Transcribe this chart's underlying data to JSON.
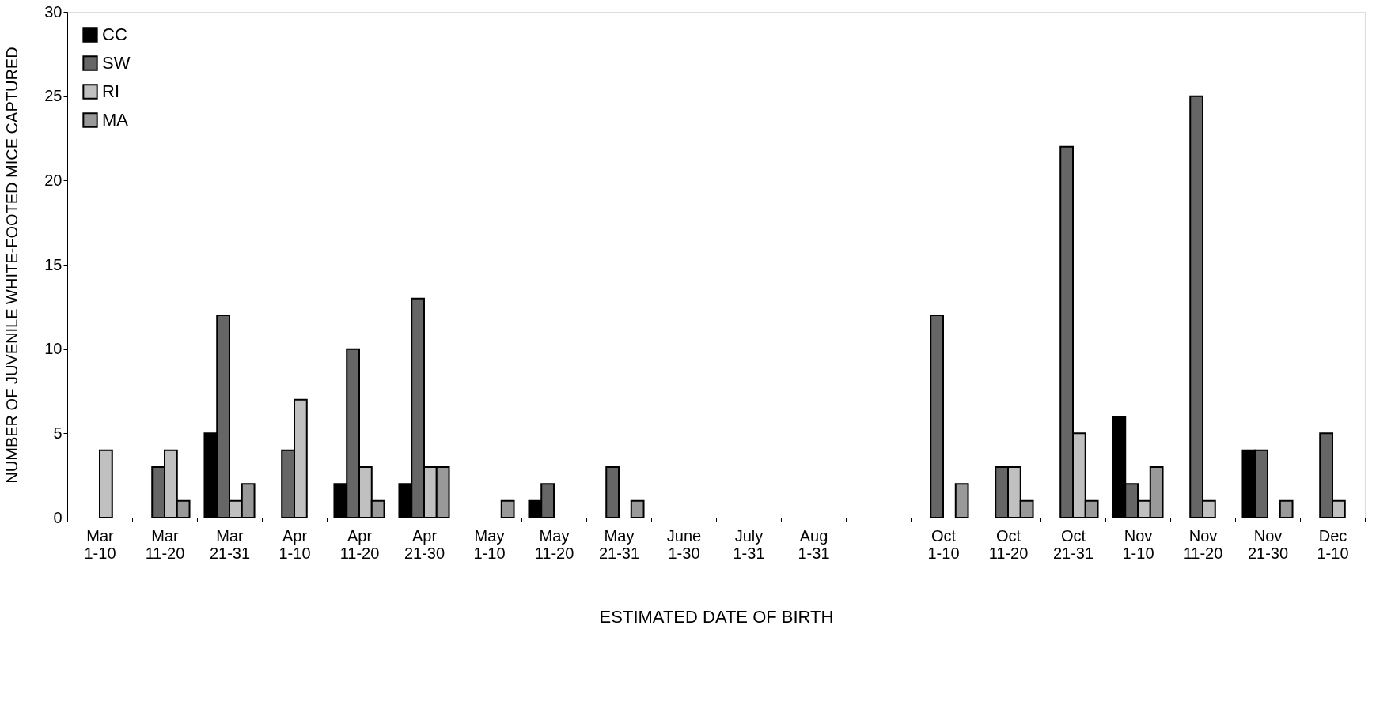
{
  "chart_data": {
    "type": "bar",
    "xlabel": "ESTIMATED DATE OF BIRTH",
    "ylabel": "NUMBER OF JUVENILE WHITE-FOOTED MICE CAPTURED",
    "categories": [
      "Mar 1-10",
      "Mar 11-20",
      "Mar 21-31",
      "Apr 1-10",
      "Apr 11-20",
      "Apr 21-30",
      "May 1-10",
      "May 11-20",
      "May 21-31",
      "June 1-30",
      "July 1-31",
      "Aug 1-31",
      null,
      "Oct 1-10",
      "Oct 11-20",
      "Oct 21-31",
      "Nov 1-10",
      "Nov 11-20",
      "Nov 21-30",
      "Dec 1-10"
    ],
    "series": [
      {
        "name": "CC",
        "color": "#000000",
        "values": [
          null,
          null,
          5,
          null,
          2,
          2,
          null,
          1,
          null,
          null,
          null,
          null,
          null,
          null,
          null,
          null,
          6,
          null,
          4,
          null
        ]
      },
      {
        "name": "SW",
        "color": "#666666",
        "values": [
          null,
          3,
          12,
          4,
          10,
          13,
          null,
          2,
          3,
          null,
          null,
          null,
          null,
          12,
          3,
          22,
          2,
          25,
          4,
          5
        ]
      },
      {
        "name": "RI",
        "color": "#c0c0c0",
        "values": [
          4,
          4,
          1,
          7,
          3,
          3,
          null,
          null,
          null,
          null,
          null,
          null,
          null,
          null,
          3,
          5,
          1,
          1,
          null,
          1
        ]
      },
      {
        "name": "MA",
        "color": "#999999",
        "values": [
          null,
          1,
          2,
          null,
          1,
          3,
          1,
          null,
          1,
          null,
          null,
          null,
          null,
          2,
          1,
          1,
          3,
          null,
          1,
          null
        ]
      }
    ],
    "ylim": [
      0,
      30
    ],
    "yticks": [
      0,
      5,
      10,
      15,
      20,
      25,
      30
    ],
    "grid": false,
    "legend": "top left"
  }
}
